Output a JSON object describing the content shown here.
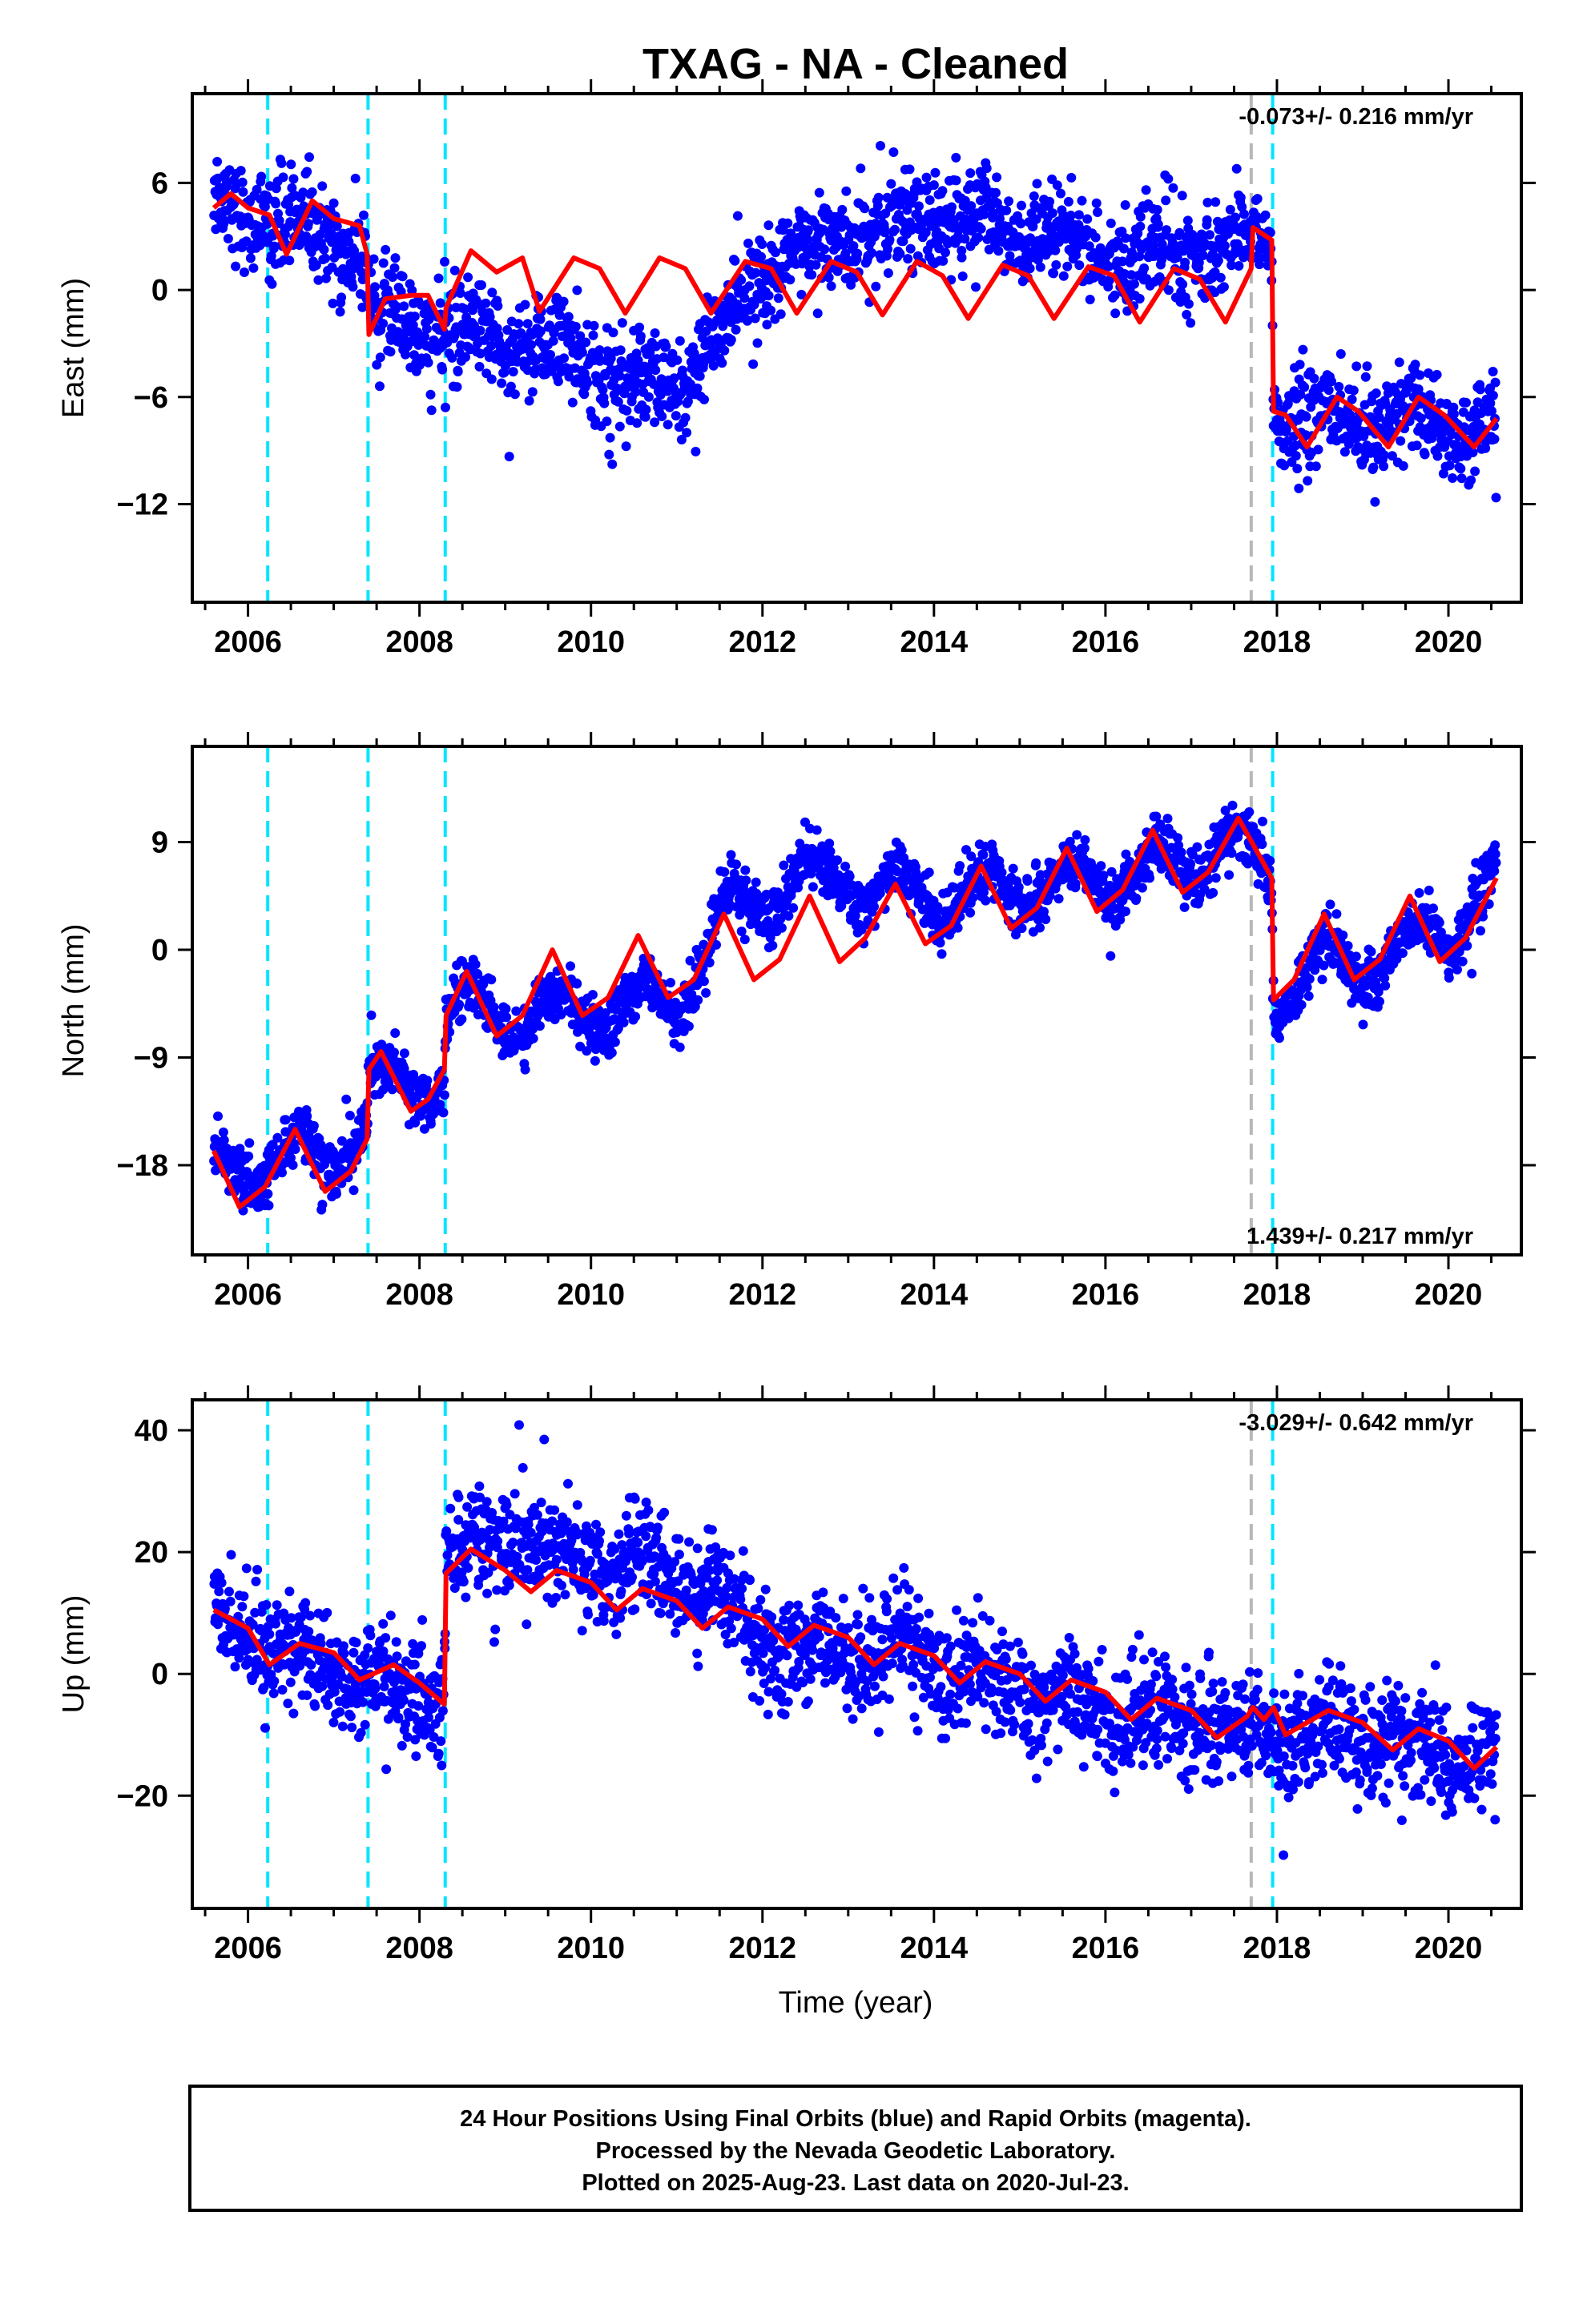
{
  "chart_data": {
    "type": "scatter",
    "title": "TXAG  - NA - Cleaned",
    "x_tick_labels": [
      "2006",
      "2008",
      "2010",
      "2012",
      "2014",
      "2016",
      "2018",
      "2020"
    ],
    "xlabel": "Time (year)",
    "xlim": [
      2005.35,
      2020.85
    ],
    "x_major_ticks": [
      2006,
      2008,
      2010,
      2012,
      2014,
      2016,
      2018,
      2020
    ],
    "x_minor_step": 0.5,
    "colors": {
      "points": "#0000ff",
      "model": "#ff0000",
      "step_lines": "#00e5ff",
      "gray_line": "#b8b8b8",
      "axes": "#000000"
    },
    "cyan_dashed_lines": [
      2006.23,
      2007.4,
      2008.3,
      2017.95
    ],
    "gray_dashed_line": 2017.7,
    "time_start": 2005.6,
    "time_end": 2020.56,
    "panels": [
      {
        "component": "East",
        "ylabel": "East (mm)",
        "ylim": [
          -17.5,
          11
        ],
        "y_ticks": [
          6,
          0,
          -6,
          -12
        ],
        "y_tick_labels": [
          "6",
          "0",
          "-6",
          "-12"
        ],
        "rate_text": "-0.073+/- 0.216 mm/yr",
        "rate_position": "top-right",
        "model_knots": [
          [
            2005.6,
            4.6
          ],
          [
            2005.8,
            5.4
          ],
          [
            2006.0,
            4.6
          ],
          [
            2006.25,
            4.2
          ],
          [
            2006.45,
            2.0
          ],
          [
            2006.75,
            5.0
          ],
          [
            2007.0,
            4.0
          ],
          [
            2007.3,
            3.6
          ],
          [
            2007.39,
            2.0
          ],
          [
            2007.41,
            -2.5
          ],
          [
            2007.6,
            -0.5
          ],
          [
            2007.9,
            -0.3
          ],
          [
            2008.1,
            -0.3
          ],
          [
            2008.29,
            -2.2
          ],
          [
            2008.31,
            -1.0
          ],
          [
            2008.6,
            2.2
          ],
          [
            2008.9,
            1.0
          ],
          [
            2009.2,
            1.8
          ],
          [
            2009.4,
            -1.2
          ],
          [
            2009.8,
            1.8
          ],
          [
            2010.1,
            1.2
          ],
          [
            2010.4,
            -1.3
          ],
          [
            2010.8,
            1.8
          ],
          [
            2011.1,
            1.2
          ],
          [
            2011.4,
            -1.3
          ],
          [
            2011.8,
            1.6
          ],
          [
            2012.1,
            1.2
          ],
          [
            2012.4,
            -1.3
          ],
          [
            2012.8,
            1.6
          ],
          [
            2013.1,
            1.0
          ],
          [
            2013.4,
            -1.4
          ],
          [
            2013.8,
            1.6
          ],
          [
            2014.1,
            0.8
          ],
          [
            2014.4,
            -1.6
          ],
          [
            2014.8,
            1.4
          ],
          [
            2015.1,
            0.8
          ],
          [
            2015.4,
            -1.6
          ],
          [
            2015.8,
            1.3
          ],
          [
            2016.1,
            0.8
          ],
          [
            2016.4,
            -1.8
          ],
          [
            2016.8,
            1.2
          ],
          [
            2017.1,
            0.6
          ],
          [
            2017.4,
            -1.8
          ],
          [
            2017.7,
            1.2
          ],
          [
            2017.72,
            3.5
          ],
          [
            2017.94,
            2.8
          ],
          [
            2017.96,
            -6.8
          ],
          [
            2018.1,
            -7.0
          ],
          [
            2018.35,
            -8.8
          ],
          [
            2018.7,
            -6.0
          ],
          [
            2018.95,
            -6.8
          ],
          [
            2019.3,
            -8.8
          ],
          [
            2019.65,
            -6.0
          ],
          [
            2019.95,
            -7.0
          ],
          [
            2020.3,
            -8.8
          ],
          [
            2020.56,
            -7.2
          ]
        ],
        "data_trend": [
          [
            2005.6,
            4.8
          ],
          [
            2006.0,
            4.5
          ],
          [
            2006.5,
            3.5
          ],
          [
            2007.0,
            3.0
          ],
          [
            2007.39,
            2.0
          ],
          [
            2007.41,
            -1.5
          ],
          [
            2008.0,
            -2.0
          ],
          [
            2008.5,
            -2.5
          ],
          [
            2009.0,
            -2.6
          ],
          [
            2009.5,
            -3.4
          ],
          [
            2010.0,
            -4.0
          ],
          [
            2010.5,
            -5.5
          ],
          [
            2011.0,
            -5.2
          ],
          [
            2011.5,
            -2.8
          ],
          [
            2012.0,
            1.0
          ],
          [
            2012.5,
            2.2
          ],
          [
            2013.0,
            3.0
          ],
          [
            2013.5,
            3.6
          ],
          [
            2014.0,
            4.3
          ],
          [
            2014.5,
            3.8
          ],
          [
            2015.0,
            3.2
          ],
          [
            2015.5,
            2.5
          ],
          [
            2016.0,
            2.0
          ],
          [
            2016.5,
            1.8
          ],
          [
            2017.0,
            2.2
          ],
          [
            2017.5,
            2.6
          ],
          [
            2017.94,
            2.8
          ],
          [
            2017.96,
            -7.0
          ],
          [
            2018.5,
            -7.2
          ],
          [
            2019.0,
            -7.5
          ],
          [
            2019.5,
            -7.0
          ],
          [
            2020.0,
            -7.6
          ],
          [
            2020.56,
            -7.8
          ]
        ],
        "seasonal_amplitude": 1.3,
        "scatter_sd": 1.35
      },
      {
        "component": "North",
        "ylabel": "North (mm)",
        "ylim": [
          -25.5,
          17
        ],
        "y_ticks": [
          9,
          0,
          -9,
          -18
        ],
        "y_tick_labels": [
          "9",
          "0",
          "-9",
          "-18"
        ],
        "rate_text": "1.439+/- 0.217 mm/yr",
        "rate_position": "bottom-right",
        "model_knots": [
          [
            2005.6,
            -16.8
          ],
          [
            2005.9,
            -21.5
          ],
          [
            2006.2,
            -19.8
          ],
          [
            2006.55,
            -15.0
          ],
          [
            2006.9,
            -20.2
          ],
          [
            2007.2,
            -18.5
          ],
          [
            2007.39,
            -15.8
          ],
          [
            2007.41,
            -10.0
          ],
          [
            2007.55,
            -8.5
          ],
          [
            2007.9,
            -13.5
          ],
          [
            2008.1,
            -12.5
          ],
          [
            2008.29,
            -10.0
          ],
          [
            2008.31,
            -5.5
          ],
          [
            2008.55,
            -1.8
          ],
          [
            2008.9,
            -7.2
          ],
          [
            2009.2,
            -5.5
          ],
          [
            2009.55,
            0.0
          ],
          [
            2009.9,
            -5.5
          ],
          [
            2010.2,
            -4.0
          ],
          [
            2010.55,
            1.2
          ],
          [
            2010.9,
            -4.0
          ],
          [
            2011.2,
            -2.5
          ],
          [
            2011.55,
            3.0
          ],
          [
            2011.9,
            -2.5
          ],
          [
            2012.2,
            -0.8
          ],
          [
            2012.55,
            4.5
          ],
          [
            2012.9,
            -1.0
          ],
          [
            2013.2,
            1.0
          ],
          [
            2013.55,
            5.5
          ],
          [
            2013.9,
            0.5
          ],
          [
            2014.2,
            2.0
          ],
          [
            2014.55,
            7.0
          ],
          [
            2014.9,
            1.8
          ],
          [
            2015.2,
            3.5
          ],
          [
            2015.55,
            8.5
          ],
          [
            2015.9,
            3.2
          ],
          [
            2016.2,
            5.0
          ],
          [
            2016.55,
            10.0
          ],
          [
            2016.9,
            4.8
          ],
          [
            2017.2,
            6.5
          ],
          [
            2017.55,
            11.0
          ],
          [
            2017.94,
            6.0
          ],
          [
            2017.96,
            -4.2
          ],
          [
            2018.2,
            -2.5
          ],
          [
            2018.55,
            3.0
          ],
          [
            2018.9,
            -2.5
          ],
          [
            2019.2,
            -0.8
          ],
          [
            2019.55,
            4.5
          ],
          [
            2019.9,
            -1.0
          ],
          [
            2020.2,
            1.0
          ],
          [
            2020.56,
            6.0
          ]
        ],
        "data_trend": [
          [
            2005.6,
            -18.5
          ],
          [
            2006.0,
            -18.5
          ],
          [
            2006.5,
            -17.0
          ],
          [
            2007.0,
            -17.5
          ],
          [
            2007.39,
            -14.5
          ],
          [
            2007.41,
            -11.0
          ],
          [
            2008.0,
            -11.5
          ],
          [
            2008.29,
            -10.0
          ],
          [
            2008.31,
            -5.0
          ],
          [
            2009.0,
            -5.5
          ],
          [
            2010.0,
            -5.0
          ],
          [
            2011.0,
            -4.5
          ],
          [
            2011.5,
            2.0
          ],
          [
            2012.0,
            4.5
          ],
          [
            2012.5,
            6.0
          ],
          [
            2013.0,
            5.5
          ],
          [
            2014.0,
            4.5
          ],
          [
            2015.0,
            5.0
          ],
          [
            2016.0,
            6.0
          ],
          [
            2017.0,
            7.5
          ],
          [
            2017.5,
            9.0
          ],
          [
            2017.94,
            6.0
          ],
          [
            2017.96,
            -4.0
          ],
          [
            2018.5,
            -1.0
          ],
          [
            2019.0,
            -1.5
          ],
          [
            2019.5,
            0.5
          ],
          [
            2020.0,
            1.5
          ],
          [
            2020.56,
            6.0
          ]
        ],
        "seasonal_amplitude": 3.2,
        "scatter_sd": 1.2
      },
      {
        "component": "Up",
        "ylabel": "Up (mm)",
        "ylim": [
          -38.5,
          45
        ],
        "y_ticks": [
          40,
          20,
          0,
          -20
        ],
        "y_tick_labels": [
          "40",
          "20",
          "0",
          "-20"
        ],
        "rate_text": "-3.029+/- 0.642 mm/yr",
        "rate_position": "top-right",
        "model_knots": [
          [
            2005.6,
            10.5
          ],
          [
            2006.0,
            7.5
          ],
          [
            2006.25,
            1.5
          ],
          [
            2006.6,
            5.0
          ],
          [
            2007.0,
            3.5
          ],
          [
            2007.3,
            -1.0
          ],
          [
            2007.7,
            1.5
          ],
          [
            2008.0,
            -1.5
          ],
          [
            2008.29,
            -5.0
          ],
          [
            2008.31,
            16.5
          ],
          [
            2008.6,
            20.5
          ],
          [
            2009.0,
            17.0
          ],
          [
            2009.3,
            13.5
          ],
          [
            2009.6,
            17.0
          ],
          [
            2010.0,
            15.0
          ],
          [
            2010.3,
            10.5
          ],
          [
            2010.6,
            14.0
          ],
          [
            2011.0,
            12.0
          ],
          [
            2011.3,
            7.5
          ],
          [
            2011.6,
            11.0
          ],
          [
            2012.0,
            9.0
          ],
          [
            2012.3,
            4.5
          ],
          [
            2012.6,
            8.0
          ],
          [
            2013.0,
            6.0
          ],
          [
            2013.3,
            1.5
          ],
          [
            2013.6,
            5.0
          ],
          [
            2014.0,
            3.0
          ],
          [
            2014.3,
            -1.5
          ],
          [
            2014.6,
            2.0
          ],
          [
            2015.0,
            0.0
          ],
          [
            2015.3,
            -4.5
          ],
          [
            2015.6,
            -1.0
          ],
          [
            2016.0,
            -3.0
          ],
          [
            2016.3,
            -7.5
          ],
          [
            2016.6,
            -4.0
          ],
          [
            2017.0,
            -6.0
          ],
          [
            2017.3,
            -10.5
          ],
          [
            2017.65,
            -7.0
          ],
          [
            2017.72,
            -5.5
          ],
          [
            2017.85,
            -7.5
          ],
          [
            2017.96,
            -5.5
          ],
          [
            2018.1,
            -10.0
          ],
          [
            2018.6,
            -6.0
          ],
          [
            2019.0,
            -8.0
          ],
          [
            2019.35,
            -12.5
          ],
          [
            2019.65,
            -9.0
          ],
          [
            2020.0,
            -11.0
          ],
          [
            2020.3,
            -15.5
          ],
          [
            2020.56,
            -12.0
          ]
        ],
        "data_trend": [
          [
            2005.6,
            9.0
          ],
          [
            2006.0,
            7.0
          ],
          [
            2006.5,
            3.0
          ],
          [
            2007.0,
            1.5
          ],
          [
            2007.5,
            -2.0
          ],
          [
            2008.0,
            -4.0
          ],
          [
            2008.29,
            -5.0
          ],
          [
            2008.31,
            20.0
          ],
          [
            2009.0,
            22.0
          ],
          [
            2009.5,
            20.0
          ],
          [
            2010.0,
            18.0
          ],
          [
            2010.5,
            17.0
          ],
          [
            2011.0,
            16.0
          ],
          [
            2011.5,
            14.0
          ],
          [
            2012.0,
            5.0
          ],
          [
            2012.5,
            3.0
          ],
          [
            2013.0,
            3.5
          ],
          [
            2013.5,
            3.0
          ],
          [
            2014.0,
            2.0
          ],
          [
            2014.5,
            -1.0
          ],
          [
            2015.0,
            -3.5
          ],
          [
            2015.5,
            -4.0
          ],
          [
            2016.0,
            -6.0
          ],
          [
            2016.5,
            -7.0
          ],
          [
            2017.0,
            -8.0
          ],
          [
            2017.5,
            -9.5
          ],
          [
            2018.0,
            -10.0
          ],
          [
            2018.5,
            -9.0
          ],
          [
            2019.0,
            -10.0
          ],
          [
            2019.5,
            -12.0
          ],
          [
            2020.0,
            -13.0
          ],
          [
            2020.56,
            -14.0
          ]
        ],
        "seasonal_amplitude": 3.5,
        "scatter_sd": 4.5
      }
    ]
  },
  "footer": {
    "line1": "24 Hour Positions Using Final Orbits (blue) and Rapid Orbits (magenta).",
    "line2": "Processed by the Nevada Geodetic Laboratory.",
    "line3": "Plotted on 2025-Aug-23. Last data on 2020-Jul-23."
  }
}
